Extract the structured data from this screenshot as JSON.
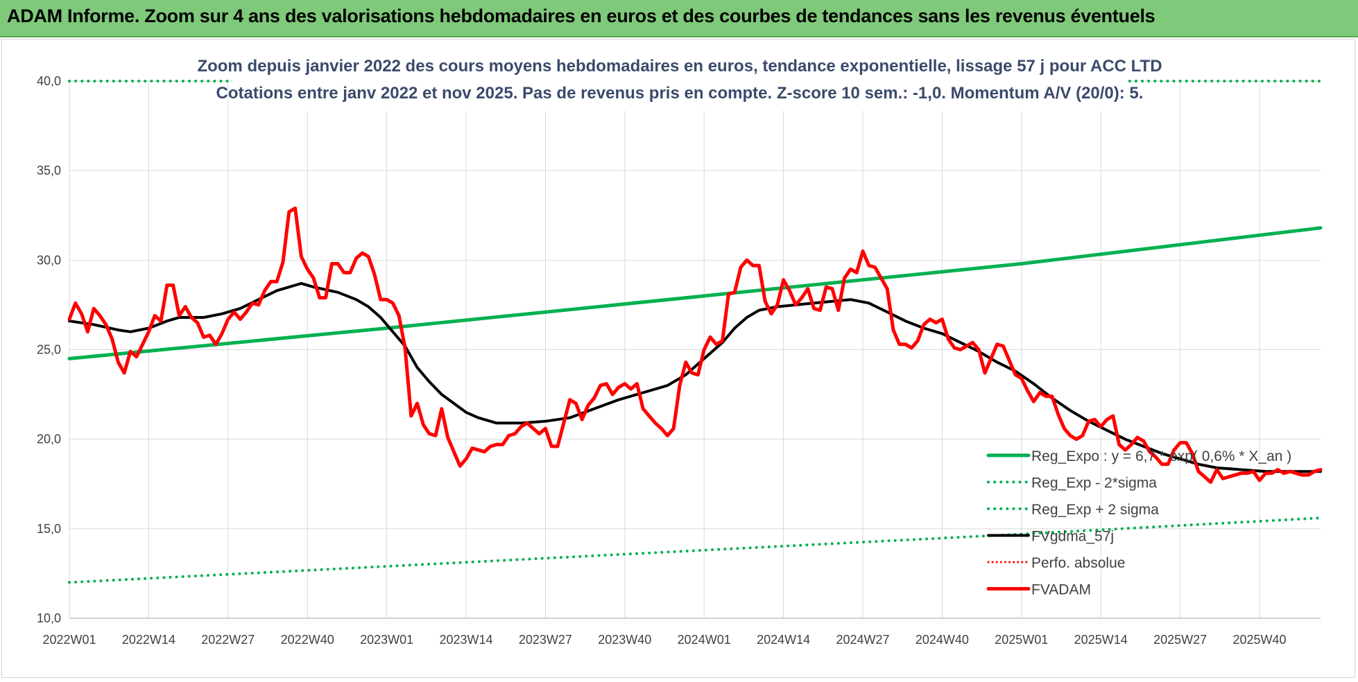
{
  "banner": {
    "title": "ADAM Informe. Zoom sur 4 ans des valorisations hebdomadaires en euros et des courbes de tendances sans les revenus éventuels"
  },
  "colors": {
    "banner": "#7fc97a",
    "trend": "#00b050",
    "price": "#ff0000",
    "smooth": "#000000",
    "grid": "#d9d9d9",
    "title": "#3b4a6b"
  },
  "chart_data": {
    "type": "line",
    "title": "Zoom depuis janvier 2022 des cours moyens hebdomadaires en euros, tendance exponentielle, lissage 57 j pour ACC LTD",
    "subtitle": "Cotations entre janv 2022 et nov 2025. Pas de revenus pris en compte. Z-score 10 sem.: -1,0. Momentum A/V (20/0): 5.",
    "xlabel": "",
    "ylabel": "",
    "ylim": [
      10,
      40
    ],
    "y_ticks": [
      "10,0",
      "15,0",
      "20,0",
      "25,0",
      "30,0",
      "35,0",
      "40,0"
    ],
    "x_range": [
      0,
      205
    ],
    "x_ticks": [
      {
        "week": 0,
        "label": "2022W01"
      },
      {
        "week": 13,
        "label": "2022W14"
      },
      {
        "week": 26,
        "label": "2022W27"
      },
      {
        "week": 39,
        "label": "2022W40"
      },
      {
        "week": 52,
        "label": "2023W01"
      },
      {
        "week": 65,
        "label": "2023W14"
      },
      {
        "week": 78,
        "label": "2023W27"
      },
      {
        "week": 91,
        "label": "2023W40"
      },
      {
        "week": 104,
        "label": "2024W01"
      },
      {
        "week": 117,
        "label": "2024W14"
      },
      {
        "week": 130,
        "label": "2024W27"
      },
      {
        "week": 143,
        "label": "2024W40"
      },
      {
        "week": 156,
        "label": "2025W01"
      },
      {
        "week": 169,
        "label": "2025W14"
      },
      {
        "week": 182,
        "label": "2025W27"
      },
      {
        "week": 195,
        "label": "2025W40"
      }
    ],
    "grid": true,
    "legend_position": "bottom-right",
    "series": [
      {
        "name": "Reg_Expo : y = 6,7 * exp( 0,6% * X_an )",
        "role": "trend",
        "style": "solid",
        "points": [
          [
            0,
            24.5
          ],
          [
            52,
            26.2
          ],
          [
            104,
            28.0
          ],
          [
            156,
            29.8
          ],
          [
            205,
            31.8
          ]
        ]
      },
      {
        "name": "Reg_Exp - 2*sigma",
        "role": "lower",
        "style": "dotted",
        "points": [
          [
            0,
            12.0
          ],
          [
            52,
            12.9
          ],
          [
            104,
            13.8
          ],
          [
            156,
            14.7
          ],
          [
            205,
            15.6
          ]
        ]
      },
      {
        "name": "Reg_Exp + 2 sigma",
        "role": "upper",
        "style": "dotted",
        "points": [
          [
            0,
            40.0
          ],
          [
            205,
            40.0
          ]
        ]
      },
      {
        "name": "FVgdma_57j",
        "role": "smooth",
        "style": "solid",
        "points": [
          [
            0,
            26.6
          ],
          [
            4,
            26.4
          ],
          [
            8,
            26.1
          ],
          [
            10,
            26.0
          ],
          [
            13,
            26.2
          ],
          [
            16,
            26.6
          ],
          [
            18,
            26.8
          ],
          [
            22,
            26.8
          ],
          [
            25,
            27.0
          ],
          [
            28,
            27.3
          ],
          [
            31,
            27.8
          ],
          [
            34,
            28.3
          ],
          [
            37,
            28.6
          ],
          [
            38,
            28.7
          ],
          [
            40,
            28.5
          ],
          [
            44,
            28.2
          ],
          [
            47,
            27.8
          ],
          [
            49,
            27.4
          ],
          [
            51,
            26.8
          ],
          [
            53,
            26.0
          ],
          [
            55,
            25.2
          ],
          [
            57,
            24.0
          ],
          [
            59,
            23.2
          ],
          [
            61,
            22.5
          ],
          [
            63,
            22.0
          ],
          [
            65,
            21.5
          ],
          [
            67,
            21.2
          ],
          [
            70,
            20.9
          ],
          [
            74,
            20.9
          ],
          [
            78,
            21.0
          ],
          [
            82,
            21.2
          ],
          [
            86,
            21.7
          ],
          [
            90,
            22.2
          ],
          [
            94,
            22.6
          ],
          [
            98,
            23.0
          ],
          [
            101,
            23.6
          ],
          [
            104,
            24.5
          ],
          [
            107,
            25.4
          ],
          [
            109,
            26.2
          ],
          [
            111,
            26.8
          ],
          [
            113,
            27.2
          ],
          [
            116,
            27.4
          ],
          [
            119,
            27.5
          ],
          [
            122,
            27.6
          ],
          [
            125,
            27.7
          ],
          [
            128,
            27.8
          ],
          [
            131,
            27.6
          ],
          [
            134,
            27.1
          ],
          [
            137,
            26.6
          ],
          [
            140,
            26.2
          ],
          [
            143,
            25.9
          ],
          [
            146,
            25.4
          ],
          [
            149,
            24.9
          ],
          [
            152,
            24.3
          ],
          [
            155,
            23.8
          ],
          [
            158,
            23.1
          ],
          [
            161,
            22.3
          ],
          [
            164,
            21.6
          ],
          [
            167,
            21.0
          ],
          [
            170,
            20.5
          ],
          [
            173,
            20.0
          ],
          [
            176,
            19.6
          ],
          [
            179,
            19.2
          ],
          [
            182,
            18.9
          ],
          [
            185,
            18.6
          ],
          [
            188,
            18.4
          ],
          [
            192,
            18.3
          ],
          [
            196,
            18.2
          ],
          [
            200,
            18.2
          ],
          [
            205,
            18.2
          ]
        ]
      },
      {
        "name": "Perfo. absolue",
        "role": "perfo",
        "style": "dotted",
        "points": []
      },
      {
        "name": "FVADAM",
        "role": "price",
        "style": "solid",
        "points": [
          [
            0,
            26.7
          ],
          [
            1,
            27.6
          ],
          [
            2,
            27.0
          ],
          [
            3,
            26.0
          ],
          [
            4,
            27.3
          ],
          [
            5,
            26.9
          ],
          [
            6,
            26.4
          ],
          [
            7,
            25.6
          ],
          [
            8,
            24.3
          ],
          [
            9,
            23.7
          ],
          [
            10,
            24.9
          ],
          [
            11,
            24.6
          ],
          [
            12,
            25.3
          ],
          [
            13,
            26.0
          ],
          [
            14,
            26.9
          ],
          [
            15,
            26.6
          ],
          [
            16,
            28.6
          ],
          [
            17,
            28.6
          ],
          [
            18,
            26.9
          ],
          [
            19,
            27.4
          ],
          [
            20,
            26.8
          ],
          [
            21,
            26.5
          ],
          [
            22,
            25.7
          ],
          [
            23,
            25.8
          ],
          [
            24,
            25.3
          ],
          [
            25,
            25.9
          ],
          [
            26,
            26.7
          ],
          [
            27,
            27.1
          ],
          [
            28,
            26.7
          ],
          [
            29,
            27.1
          ],
          [
            30,
            27.6
          ],
          [
            31,
            27.5
          ],
          [
            32,
            28.3
          ],
          [
            33,
            28.8
          ],
          [
            34,
            28.8
          ],
          [
            35,
            29.9
          ],
          [
            36,
            32.7
          ],
          [
            37,
            32.9
          ],
          [
            38,
            30.2
          ],
          [
            39,
            29.5
          ],
          [
            40,
            29.0
          ],
          [
            41,
            27.9
          ],
          [
            42,
            27.9
          ],
          [
            43,
            29.8
          ],
          [
            44,
            29.8
          ],
          [
            45,
            29.3
          ],
          [
            46,
            29.3
          ],
          [
            47,
            30.1
          ],
          [
            48,
            30.4
          ],
          [
            49,
            30.2
          ],
          [
            50,
            29.2
          ],
          [
            51,
            27.8
          ],
          [
            52,
            27.8
          ],
          [
            53,
            27.6
          ],
          [
            54,
            26.9
          ],
          [
            55,
            25.1
          ],
          [
            56,
            21.3
          ],
          [
            57,
            22.0
          ],
          [
            58,
            20.8
          ],
          [
            59,
            20.3
          ],
          [
            60,
            20.2
          ],
          [
            61,
            21.7
          ],
          [
            62,
            20.1
          ],
          [
            63,
            19.3
          ],
          [
            64,
            18.5
          ],
          [
            65,
            18.9
          ],
          [
            66,
            19.5
          ],
          [
            67,
            19.4
          ],
          [
            68,
            19.3
          ],
          [
            69,
            19.6
          ],
          [
            70,
            19.7
          ],
          [
            71,
            19.7
          ],
          [
            72,
            20.2
          ],
          [
            73,
            20.3
          ],
          [
            74,
            20.7
          ],
          [
            75,
            20.9
          ],
          [
            76,
            20.6
          ],
          [
            77,
            20.3
          ],
          [
            78,
            20.6
          ],
          [
            79,
            19.6
          ],
          [
            80,
            19.6
          ],
          [
            81,
            20.9
          ],
          [
            82,
            22.2
          ],
          [
            83,
            22.0
          ],
          [
            84,
            21.1
          ],
          [
            85,
            21.9
          ],
          [
            86,
            22.3
          ],
          [
            87,
            23.0
          ],
          [
            88,
            23.1
          ],
          [
            89,
            22.5
          ],
          [
            90,
            22.9
          ],
          [
            91,
            23.1
          ],
          [
            92,
            22.8
          ],
          [
            93,
            23.1
          ],
          [
            94,
            21.7
          ],
          [
            95,
            21.3
          ],
          [
            96,
            20.9
          ],
          [
            97,
            20.6
          ],
          [
            98,
            20.2
          ],
          [
            99,
            20.6
          ],
          [
            100,
            23.0
          ],
          [
            101,
            24.3
          ],
          [
            102,
            23.7
          ],
          [
            103,
            23.6
          ],
          [
            104,
            25.0
          ],
          [
            105,
            25.7
          ],
          [
            106,
            25.3
          ],
          [
            107,
            25.5
          ],
          [
            108,
            28.1
          ],
          [
            109,
            28.2
          ],
          [
            110,
            29.6
          ],
          [
            111,
            30.0
          ],
          [
            112,
            29.7
          ],
          [
            113,
            29.7
          ],
          [
            114,
            27.7
          ],
          [
            115,
            27.0
          ],
          [
            116,
            27.5
          ],
          [
            117,
            28.9
          ],
          [
            118,
            28.3
          ],
          [
            119,
            27.5
          ],
          [
            120,
            27.9
          ],
          [
            121,
            28.4
          ],
          [
            122,
            27.3
          ],
          [
            123,
            27.2
          ],
          [
            124,
            28.5
          ],
          [
            125,
            28.4
          ],
          [
            126,
            27.2
          ],
          [
            127,
            29.0
          ],
          [
            128,
            29.5
          ],
          [
            129,
            29.3
          ],
          [
            130,
            30.5
          ],
          [
            131,
            29.7
          ],
          [
            132,
            29.6
          ],
          [
            133,
            29.0
          ],
          [
            134,
            28.4
          ],
          [
            135,
            26.1
          ],
          [
            136,
            25.3
          ],
          [
            137,
            25.3
          ],
          [
            138,
            25.1
          ],
          [
            139,
            25.5
          ],
          [
            140,
            26.4
          ],
          [
            141,
            26.7
          ],
          [
            142,
            26.5
          ],
          [
            143,
            26.7
          ],
          [
            144,
            25.6
          ],
          [
            145,
            25.1
          ],
          [
            146,
            25.0
          ],
          [
            147,
            25.2
          ],
          [
            148,
            25.4
          ],
          [
            149,
            25.0
          ],
          [
            150,
            23.7
          ],
          [
            151,
            24.5
          ],
          [
            152,
            25.3
          ],
          [
            153,
            25.2
          ],
          [
            154,
            24.4
          ],
          [
            155,
            23.6
          ],
          [
            156,
            23.4
          ],
          [
            157,
            22.7
          ],
          [
            158,
            22.1
          ],
          [
            159,
            22.6
          ],
          [
            160,
            22.4
          ],
          [
            161,
            22.4
          ],
          [
            162,
            21.4
          ],
          [
            163,
            20.6
          ],
          [
            164,
            20.2
          ],
          [
            165,
            20.0
          ],
          [
            166,
            20.2
          ],
          [
            167,
            21.0
          ],
          [
            168,
            21.1
          ],
          [
            169,
            20.7
          ],
          [
            170,
            21.1
          ],
          [
            171,
            21.3
          ],
          [
            172,
            19.7
          ],
          [
            173,
            19.4
          ],
          [
            174,
            19.7
          ],
          [
            175,
            20.1
          ],
          [
            176,
            19.9
          ],
          [
            177,
            19.3
          ],
          [
            178,
            19.0
          ],
          [
            179,
            18.6
          ],
          [
            180,
            18.6
          ],
          [
            181,
            19.4
          ],
          [
            182,
            19.8
          ],
          [
            183,
            19.8
          ],
          [
            184,
            19.2
          ],
          [
            185,
            18.2
          ],
          [
            186,
            17.9
          ],
          [
            187,
            17.6
          ],
          [
            188,
            18.3
          ],
          [
            189,
            17.8
          ],
          [
            190,
            17.9
          ],
          [
            191,
            18.0
          ],
          [
            192,
            18.1
          ],
          [
            193,
            18.1
          ],
          [
            194,
            18.2
          ],
          [
            195,
            17.7
          ],
          [
            196,
            18.1
          ],
          [
            197,
            18.1
          ],
          [
            198,
            18.3
          ],
          [
            199,
            18.1
          ],
          [
            200,
            18.2
          ],
          [
            201,
            18.1
          ],
          [
            202,
            18.0
          ],
          [
            203,
            18.0
          ],
          [
            204,
            18.2
          ],
          [
            205,
            18.3
          ]
        ]
      }
    ]
  }
}
